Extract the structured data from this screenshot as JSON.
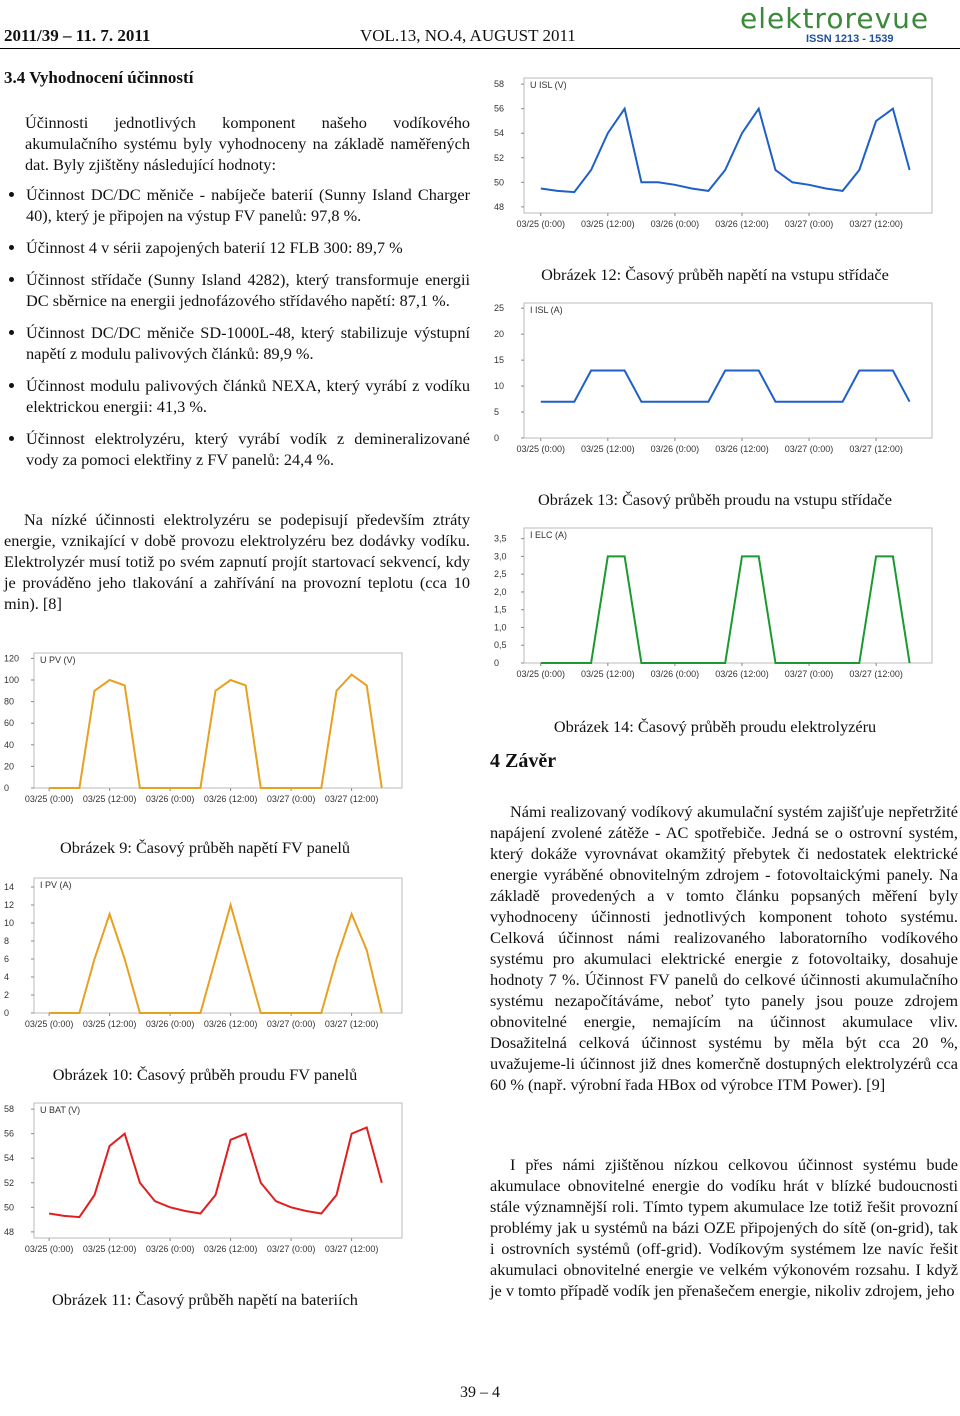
{
  "header": {
    "left": "2011/39 – 11. 7. 2011",
    "center": "VOL.13, NO.4, AUGUST 2011",
    "logo": "elektrorevue",
    "issn": "ISSN 1213 - 1539"
  },
  "section": {
    "heading": "3.4 Vyhodnocení účinností",
    "intro": "Účinnosti jednotlivých komponent našeho vodíkového akumulačního systému byly vyhodnoceny na základě naměřených dat. Byly zjištěny následující hodnoty:",
    "bullets": [
      "Účinnost DC/DC měniče - nabíječe baterií (Sunny Island Charger 40), který je připojen na výstup FV panelů: 97,8 %.",
      "Účinnost 4 v sérii zapojených baterií 12 FLB 300: 89,7 %",
      "Účinnost střídače (Sunny Island 4282), který transformuje energii DC sběrnice na energii jednofázového střídavého napětí: 87,1 %.",
      "Účinnost DC/DC měniče SD-1000L-48, který stabilizuje výstupní napětí z modulu palivových článků: 89,9 %.",
      "Účinnost modulu palivových článků NEXA, který vyrábí z vodíku elektrickou energii: 41,3 %.",
      "Účinnost elektrolyzéru, který vyrábí vodík z demineralizované vody za pomoci elektřiny z FV panelů: 24,4 %."
    ],
    "paragraph": "Na nízké účinnosti elektrolyzéru se podepisují především ztráty energie, vznikající v době provozu elektrolyzéru bez dodávky vodíku. Elektrolyzér musí totiž po svém zapnutí projít startovací sekvencí, kdy je prováděno jeho tlakování a zahřívání na provozní teplotu (cca 10 min). [8]"
  },
  "figures": [
    {
      "caption": "Obrázek 9: Časový průběh napětí FV panelů",
      "axis_label": "U PV (V)",
      "color": "#e8a020",
      "ylim": [
        0,
        125
      ],
      "yticks": [
        0,
        20,
        40,
        60,
        80,
        100,
        120
      ],
      "xlim": [
        -3,
        70
      ],
      "xticks": [
        {
          "value": 0,
          "label": "03/25 (0:00)"
        },
        {
          "value": 12,
          "label": "03/25 (12:00)"
        },
        {
          "value": 24,
          "label": "03/26 (0:00)"
        },
        {
          "value": 36,
          "label": "03/26 (12:00)"
        },
        {
          "value": 48,
          "label": "03/27 (0:00)"
        },
        {
          "value": 60,
          "label": "03/27 (12:00)"
        }
      ],
      "x": [
        0,
        3,
        6,
        9,
        12,
        15,
        18,
        21,
        24,
        27,
        30,
        33,
        36,
        39,
        42,
        45,
        48,
        51,
        54,
        57,
        60,
        63,
        66
      ],
      "values": [
        0,
        0,
        0,
        90,
        100,
        95,
        0,
        0,
        0,
        0,
        0,
        90,
        100,
        95,
        0,
        0,
        0,
        0,
        0,
        90,
        105,
        95,
        0
      ]
    },
    {
      "caption": "Obrázek 10: Časový průběh proudu FV panelů",
      "axis_label": "I PV (A)",
      "color": "#e8a020",
      "ylim": [
        0,
        15
      ],
      "yticks": [
        0,
        2,
        4,
        6,
        8,
        10,
        12,
        14
      ],
      "xlim": [
        -3,
        70
      ],
      "xticks": [
        {
          "value": 0,
          "label": "03/25 (0:00)"
        },
        {
          "value": 12,
          "label": "03/25 (12:00)"
        },
        {
          "value": 24,
          "label": "03/26 (0:00)"
        },
        {
          "value": 36,
          "label": "03/26 (12:00)"
        },
        {
          "value": 48,
          "label": "03/27 (0:00)"
        },
        {
          "value": 60,
          "label": "03/27 (12:00)"
        }
      ],
      "x": [
        0,
        3,
        6,
        9,
        12,
        15,
        18,
        21,
        24,
        27,
        30,
        33,
        36,
        39,
        42,
        45,
        48,
        51,
        54,
        57,
        60,
        63,
        66
      ],
      "values": [
        0,
        0,
        0,
        6,
        11,
        6,
        0,
        0,
        0,
        0,
        0,
        6,
        12,
        6,
        0,
        0,
        0,
        0,
        0,
        6,
        11,
        7,
        0
      ]
    },
    {
      "caption": "Obrázek 11: Časový průběh napětí na bateriích",
      "axis_label": "U BAT (V)",
      "color": "#e02020",
      "ylim": [
        47.5,
        58.5
      ],
      "yticks": [
        48,
        50,
        52,
        54,
        56,
        58
      ],
      "xlim": [
        -3,
        70
      ],
      "xticks": [
        {
          "value": 0,
          "label": "03/25 (0:00)"
        },
        {
          "value": 12,
          "label": "03/25 (12:00)"
        },
        {
          "value": 24,
          "label": "03/26 (0:00)"
        },
        {
          "value": 36,
          "label": "03/26 (12:00)"
        },
        {
          "value": 48,
          "label": "03/27 (0:00)"
        },
        {
          "value": 60,
          "label": "03/27 (12:00)"
        }
      ],
      "x": [
        0,
        3,
        6,
        9,
        12,
        15,
        18,
        21,
        24,
        27,
        30,
        33,
        36,
        39,
        42,
        45,
        48,
        51,
        54,
        57,
        60,
        63,
        66
      ],
      "values": [
        49.5,
        49.3,
        49.2,
        51,
        55,
        56,
        52,
        50.5,
        50,
        49.7,
        49.5,
        51,
        55.5,
        56,
        52,
        50.5,
        50,
        49.7,
        49.5,
        51,
        56,
        56.5,
        52
      ]
    },
    {
      "caption": "Obrázek 12: Časový průběh napětí na vstupu střídače",
      "axis_label": "U ISL (V)",
      "color": "#1f5fc8",
      "ylim": [
        47.5,
        58.5
      ],
      "yticks": [
        48,
        50,
        52,
        54,
        56,
        58
      ],
      "xlim": [
        -3,
        70
      ],
      "xticks": [
        {
          "value": 0,
          "label": "03/25 (0:00)"
        },
        {
          "value": 12,
          "label": "03/25 (12:00)"
        },
        {
          "value": 24,
          "label": "03/26 (0:00)"
        },
        {
          "value": 36,
          "label": "03/26 (12:00)"
        },
        {
          "value": 48,
          "label": "03/27 (0:00)"
        },
        {
          "value": 60,
          "label": "03/27 (12:00)"
        }
      ],
      "x": [
        0,
        3,
        6,
        9,
        12,
        15,
        18,
        21,
        24,
        27,
        30,
        33,
        36,
        39,
        42,
        45,
        48,
        51,
        54,
        57,
        60,
        63,
        66
      ],
      "values": [
        49.5,
        49.3,
        49.2,
        51,
        54,
        56,
        50,
        50,
        49.8,
        49.5,
        49.3,
        51,
        54,
        56,
        51,
        50,
        49.8,
        49.5,
        49.3,
        51,
        55,
        56,
        51
      ]
    },
    {
      "caption": "Obrázek 13: Časový průběh proudu na vstupu střídače",
      "axis_label": "I ISL (A)",
      "color": "#1f5fc8",
      "ylim": [
        0,
        26
      ],
      "yticks": [
        0,
        5,
        10,
        15,
        20,
        25
      ],
      "xlim": [
        -3,
        70
      ],
      "xticks": [
        {
          "value": 0,
          "label": "03/25 (0:00)"
        },
        {
          "value": 12,
          "label": "03/25 (12:00)"
        },
        {
          "value": 24,
          "label": "03/26 (0:00)"
        },
        {
          "value": 36,
          "label": "03/26 (12:00)"
        },
        {
          "value": 48,
          "label": "03/27 (0:00)"
        },
        {
          "value": 60,
          "label": "03/27 (12:00)"
        }
      ],
      "x": [
        0,
        3,
        6,
        9,
        12,
        15,
        18,
        21,
        24,
        27,
        30,
        33,
        36,
        39,
        42,
        45,
        48,
        51,
        54,
        57,
        60,
        63,
        66
      ],
      "values": [
        7,
        7,
        7,
        13,
        13,
        13,
        7,
        7,
        7,
        7,
        7,
        13,
        13,
        13,
        7,
        7,
        7,
        7,
        7,
        13,
        13,
        13,
        7
      ]
    },
    {
      "caption": "Obrázek 14: Časový průběh proudu elektrolyzéru",
      "axis_label": "I ELC (A)",
      "color": "#1a9a30",
      "ylim": [
        0,
        3.8
      ],
      "yticks": [
        {
          "value": 0,
          "label": "0"
        },
        {
          "value": 0.5,
          "label": "0,5"
        },
        {
          "value": 1,
          "label": "1,0"
        },
        {
          "value": 1.5,
          "label": "1,5"
        },
        {
          "value": 2,
          "label": "2,0"
        },
        {
          "value": 2.5,
          "label": "2,5"
        },
        {
          "value": 3,
          "label": "3,0"
        },
        {
          "value": 3.5,
          "label": "3,5"
        }
      ],
      "xlim": [
        -3,
        70
      ],
      "xticks": [
        {
          "value": 0,
          "label": "03/25 (0:00)"
        },
        {
          "value": 12,
          "label": "03/25 (12:00)"
        },
        {
          "value": 24,
          "label": "03/26 (0:00)"
        },
        {
          "value": 36,
          "label": "03/26 (12:00)"
        },
        {
          "value": 48,
          "label": "03/27 (0:00)"
        },
        {
          "value": 60,
          "label": "03/27 (12:00)"
        }
      ],
      "x": [
        0,
        3,
        6,
        9,
        12,
        15,
        18,
        21,
        24,
        27,
        30,
        33,
        36,
        39,
        42,
        45,
        48,
        51,
        54,
        57,
        60,
        63,
        66
      ],
      "values": [
        0,
        0,
        0,
        0,
        3,
        3,
        0,
        0,
        0,
        0,
        0,
        0,
        3,
        3,
        0,
        0,
        0,
        0,
        0,
        0,
        3,
        3,
        0
      ]
    }
  ],
  "conclusion": {
    "heading": "4 Závěr",
    "paragraphs": [
      "Námi realizovaný vodíkový akumulační systém zajišťuje nepřetržité napájení zvolené zátěže - AC spotřebiče. Jedná se o ostrovní systém, který dokáže vyrovnávat okamžitý přebytek či nedostatek elektrické energie vyráběné obnovitelným zdrojem - fotovoltaickými panely. Na základě provedených a v tomto článku popsaných měření byly vyhodnoceny účinnosti jednotlivých komponent tohoto systému. Celková účinnost námi realizovaného laboratorního vodíkového systému pro akumulaci elektrické energie z fotovoltaiky, dosahuje hodnoty 7 %. Účinnost FV panelů do celkové účinnosti akumulačního systému nezapočítáváme, neboť tyto panely jsou pouze zdrojem obnovitelné energie, nemajícím na účinnost akumulace vliv. Dosažitelná celková účinnost systému by měla být cca 20 %, uvažujeme-li účinnost již dnes komerčně dostupných elektrolyzérů cca 60 % (např. výrobní řada HBox od výrobce ITM Power). [9]",
      "I přes námi zjištěnou nízkou celkovou účinnost systému bude akumulace obnovitelné energie do vodíku hrát v blízké budoucnosti stále významnější roli. Tímto typem akumulace lze totiž řešit provozní problémy jak u systémů na bázi OZE připojených do sítě (on-grid), tak i ostrovních systémů (off-grid). Vodíkovým systémem lze navíc řešit akumulaci obnovitelné energie ve velkém výkonovém rozsahu. I když je v tomto případě vodík jen přenašečem energie, nikoliv zdrojem, jeho"
    ]
  },
  "footer": {
    "page": "39 – 4"
  }
}
